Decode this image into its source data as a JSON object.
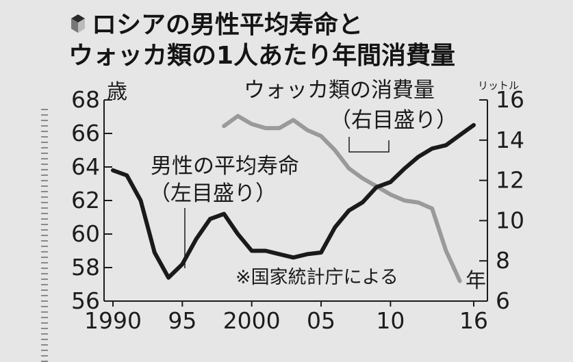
{
  "chart_data": {
    "type": "line",
    "title_lines": [
      "ロシアの男性平均寿命と",
      "ウォッカ類の1人あたり年間消費量"
    ],
    "left_axis": {
      "unit": "歳",
      "ylim": [
        56,
        68
      ],
      "ticks": [
        68,
        66,
        64,
        62,
        60,
        58,
        56
      ]
    },
    "right_axis": {
      "unit": "リットル",
      "ylim": [
        6,
        16
      ],
      "ticks": [
        16,
        14,
        12,
        10,
        8,
        6
      ]
    },
    "x_axis": {
      "unit": "年",
      "xlim": [
        1990,
        2016
      ],
      "ticks": [
        1990,
        1995,
        2000,
        2005,
        2010,
        2016
      ],
      "tick_labels": [
        "1990",
        "95",
        "2000",
        "05",
        "10",
        "16"
      ]
    },
    "series": [
      {
        "name": "男性の平均寿命",
        "sub_label": "（左目盛り）",
        "axis": "left",
        "color": "#1a1a1a",
        "x": [
          1990,
          1991,
          1992,
          1993,
          1994,
          1995,
          1996,
          1997,
          1998,
          1999,
          2000,
          2001,
          2002,
          2003,
          2004,
          2005,
          2006,
          2007,
          2008,
          2009,
          2010,
          2011,
          2012,
          2013,
          2014,
          2015,
          2016
        ],
        "values": [
          63.8,
          63.5,
          62.0,
          58.9,
          57.4,
          58.2,
          59.7,
          60.9,
          61.2,
          60.0,
          59.0,
          59.0,
          58.8,
          58.6,
          58.8,
          58.9,
          60.4,
          61.4,
          61.9,
          62.8,
          63.1,
          63.9,
          64.6,
          65.1,
          65.3,
          65.9,
          66.5
        ]
      },
      {
        "name": "ウォッカ類の消費量",
        "sub_label": "（右目盛り）",
        "axis": "right",
        "color": "#9a9a9a",
        "x": [
          1998,
          1999,
          2000,
          2001,
          2002,
          2003,
          2004,
          2005,
          2006,
          2007,
          2008,
          2009,
          2010,
          2011,
          2012,
          2013,
          2014,
          2015
        ],
        "values": [
          14.7,
          15.2,
          14.8,
          14.6,
          14.6,
          15.0,
          14.5,
          14.2,
          13.5,
          12.6,
          12.1,
          11.7,
          11.3,
          11.0,
          10.9,
          10.6,
          8.5,
          7.0
        ]
      }
    ],
    "note": "※国家統計庁による"
  }
}
